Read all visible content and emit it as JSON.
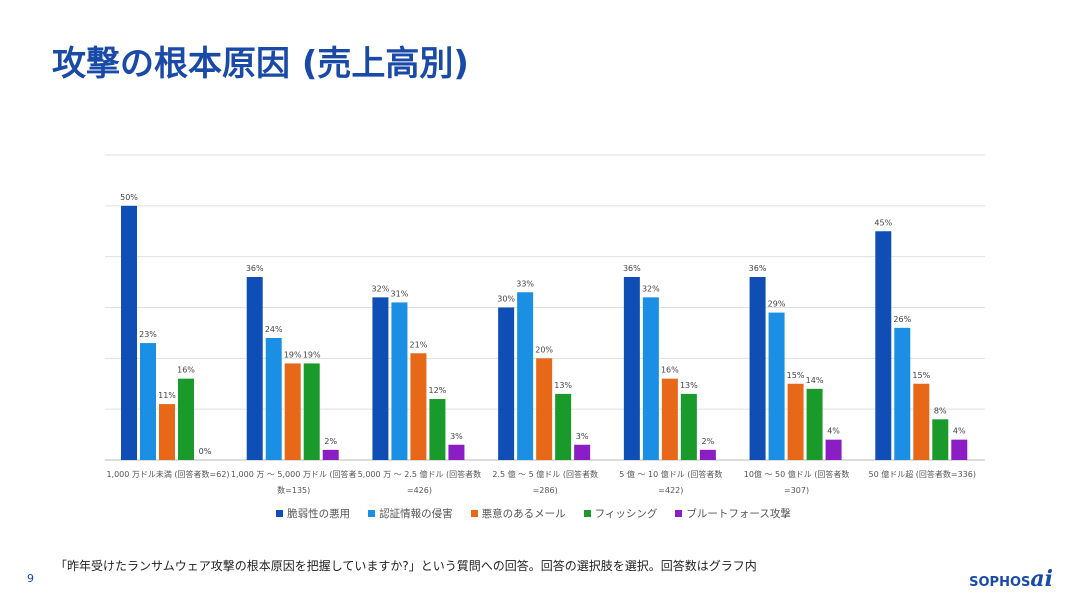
{
  "title": "攻撃の根本原因 (売上高別)",
  "footnote": "「昨年受けたランサムウェア攻撃の根本原因を把握していますか?」という質問への回答。回答の選択肢を選択。回答数はグラフ内",
  "page_number": "9",
  "logo": {
    "text": "SOPHOS",
    "suffix": "ai"
  },
  "chart_data": {
    "type": "bar",
    "title": "",
    "xlabel": "",
    "ylabel": "",
    "ylim": [
      0,
      60
    ],
    "grid": true,
    "legend_position": "bottom",
    "categories": [
      "1,000 万ドル未満 (回答者数=62)",
      "1,000 万 ～ 5,000 万ドル (回答者数=135)",
      "5,000 万 ～ 2.5 億ドル (回答者数=426)",
      "2.5 億 ～ 5 億ドル (回答者数=286)",
      "5 億 ～ 10 億ドル (回答者数=422)",
      "10億 ～ 50 億ドル (回答者数=307)",
      "50 億ドル超 (回答者数=336)"
    ],
    "series": [
      {
        "name": "脆弱性の悪用",
        "color": "#0f4fb5",
        "values": [
          50,
          36,
          32,
          30,
          36,
          36,
          45
        ]
      },
      {
        "name": "認証情報の侵害",
        "color": "#1a8fe3",
        "values": [
          23,
          24,
          31,
          33,
          32,
          29,
          26
        ]
      },
      {
        "name": "悪意のあるメール",
        "color": "#e8681a",
        "values": [
          11,
          19,
          21,
          20,
          16,
          15,
          15
        ]
      },
      {
        "name": "フィッシング",
        "color": "#1a9a2a",
        "values": [
          16,
          19,
          12,
          13,
          13,
          14,
          8
        ]
      },
      {
        "name": "ブルートフォース攻撃",
        "color": "#8a1ec4",
        "values": [
          0,
          2,
          3,
          3,
          2,
          4,
          4
        ]
      }
    ]
  }
}
